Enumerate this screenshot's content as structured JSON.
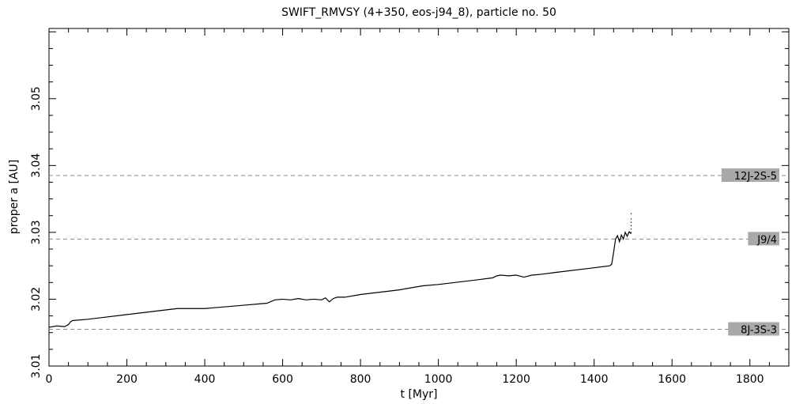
{
  "chart_data": {
    "type": "line",
    "title": "SWIFT_RMVSY (4+350, eos-j94_8), particle no. 50",
    "xlabel": "t [Myr]",
    "ylabel": "proper a [AU]",
    "xlim": [
      0,
      1900
    ],
    "ylim": [
      3.01,
      3.0605
    ],
    "x_ticks": [
      0,
      200,
      400,
      600,
      800,
      1000,
      1200,
      1400,
      1600,
      1800
    ],
    "x_tick_labels": [
      "0",
      "200",
      "400",
      "600",
      "800",
      "1000",
      "1200",
      "1400",
      "1600",
      "1800"
    ],
    "y_ticks": [
      3.01,
      3.02,
      3.03,
      3.04,
      3.05
    ],
    "y_tick_labels": [
      "3.01",
      "3.02",
      "3.03",
      "3.04",
      "3.05"
    ],
    "grid": false,
    "series": [
      {
        "x": [
          0,
          20,
          40,
          50,
          55,
          60,
          100,
          200,
          300,
          330,
          400,
          420,
          500,
          560,
          580,
          600,
          620,
          640,
          660,
          680,
          700,
          710,
          720,
          730,
          740,
          760,
          800,
          900,
          960,
          1000,
          1100,
          1140,
          1150,
          1160,
          1180,
          1200,
          1220,
          1240,
          1260,
          1300,
          1400,
          1440,
          1445,
          1450,
          1455,
          1460,
          1465,
          1470,
          1475,
          1480,
          1485,
          1490,
          1495
        ],
        "y": [
          3.0158,
          3.016,
          3.0159,
          3.0162,
          3.0166,
          3.0168,
          3.017,
          3.0177,
          3.0184,
          3.0186,
          3.0186,
          3.0187,
          3.0191,
          3.0194,
          3.0199,
          3.02,
          3.0199,
          3.0201,
          3.0199,
          3.02,
          3.0199,
          3.0202,
          3.0196,
          3.0201,
          3.0203,
          3.0203,
          3.0207,
          3.0214,
          3.022,
          3.0222,
          3.0229,
          3.0232,
          3.0235,
          3.0236,
          3.0235,
          3.0236,
          3.0233,
          3.0236,
          3.0237,
          3.024,
          3.0247,
          3.025,
          3.0252,
          3.027,
          3.029,
          3.0295,
          3.0286,
          3.0296,
          3.029,
          3.03,
          3.0294,
          3.0301,
          3.0298
        ]
      }
    ],
    "scatter_points": {
      "x": [
        1495,
        1495,
        1495,
        1495,
        1495,
        1495
      ],
      "y": [
        3.03,
        3.0305,
        3.031,
        3.0315,
        3.032,
        3.0328
      ]
    },
    "reference_lines": [
      {
        "label": "12J-2S-5",
        "y": 3.0385
      },
      {
        "label": "J9/4",
        "y": 3.029
      },
      {
        "label": "8J-3S-3",
        "y": 3.0155
      }
    ]
  }
}
